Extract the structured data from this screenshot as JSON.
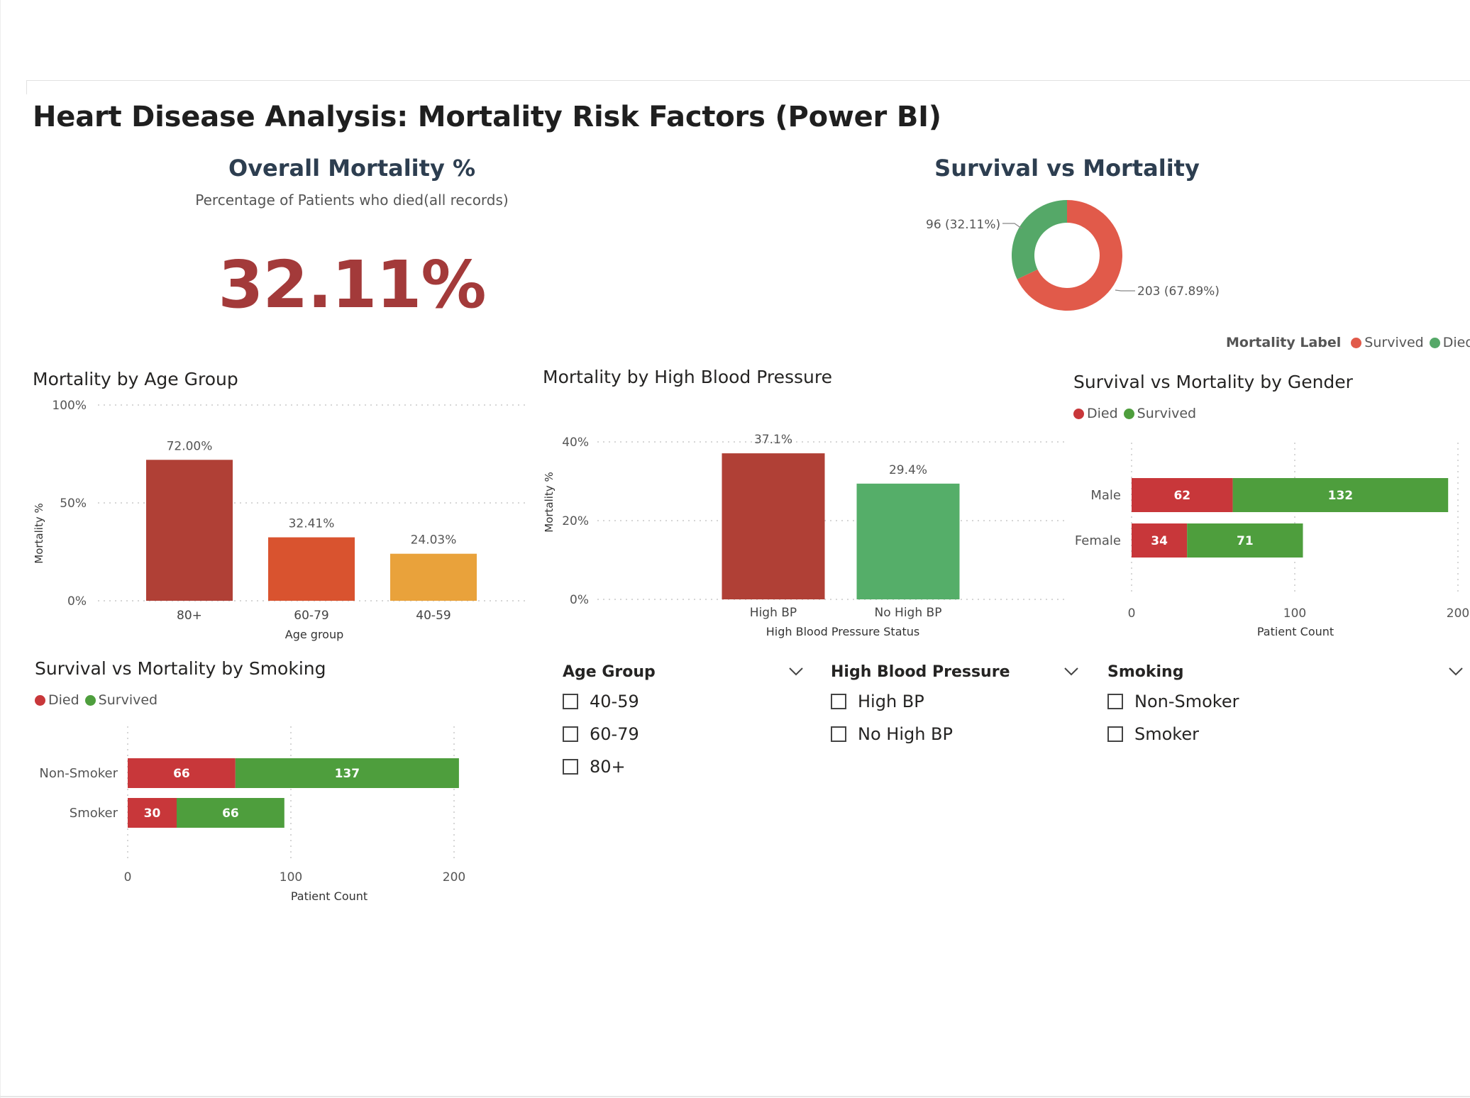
{
  "page": {
    "title": "Heart Disease Analysis: Mortality Risk Factors (Power BI)"
  },
  "kpi": {
    "title": "Overall Mortality %",
    "subtitle": "Percentage of Patients who died(all records)",
    "value": "32.11%"
  },
  "donut": {
    "title": "Survival vs Mortality",
    "label_died": "96 (32.11%)",
    "label_survived": "203 (67.89%)",
    "legend_title": "Mortality Label",
    "legend_items": [
      "Survived",
      "Died"
    ],
    "colors": {
      "survived": "#e15a4a",
      "died": "#55a868"
    }
  },
  "age_chart": {
    "title": "Mortality by Age Group",
    "ylabel": "Mortality %",
    "xlabel": "Age group"
  },
  "bp_chart": {
    "title": "Mortality by High Blood Pressure",
    "ylabel": "Mortality %",
    "xlabel": "High Blood Pressure Status"
  },
  "gender_chart": {
    "title": "Survival vs Mortality by Gender",
    "legend": [
      "Died",
      "Survived"
    ],
    "xlabel": "Patient Count"
  },
  "smoking_chart": {
    "title": "Survival vs Mortality by Smoking",
    "legend": [
      "Died",
      "Survived"
    ],
    "xlabel": "Patient Count"
  },
  "slicers": {
    "age": {
      "title": "Age Group",
      "options": [
        "40-59",
        "60-79",
        "80+"
      ]
    },
    "bp": {
      "title": "High Blood Pressure",
      "options": [
        "High BP",
        "No High BP"
      ]
    },
    "smoking": {
      "title": "Smoking",
      "options": [
        "Non-Smoker",
        "Smoker"
      ]
    }
  },
  "chart_data": [
    {
      "type": "pie",
      "title": "Survival vs Mortality",
      "categories": [
        "Survived",
        "Died"
      ],
      "values": [
        203,
        96
      ],
      "percent": [
        67.89,
        32.11
      ],
      "legend": "top-right"
    },
    {
      "type": "bar",
      "title": "Mortality by Age Group",
      "categories": [
        "80+",
        "60-79",
        "40-59"
      ],
      "values": [
        72.0,
        32.41,
        24.03
      ],
      "data_labels": [
        "72.00%",
        "32.41%",
        "24.03%"
      ],
      "colors": [
        "#b04036",
        "#d9532f",
        "#e9a23b"
      ],
      "xlabel": "Age group",
      "ylabel": "Mortality %",
      "ylim": [
        0,
        100
      ],
      "yticks": [
        "0%",
        "50%",
        "100%"
      ]
    },
    {
      "type": "bar",
      "title": "Mortality by High Blood Pressure",
      "categories": [
        "High BP",
        "No High BP"
      ],
      "values": [
        37.1,
        29.4
      ],
      "data_labels": [
        "37.1%",
        "29.4%"
      ],
      "colors": [
        "#b04036",
        "#55ae69"
      ],
      "xlabel": "High Blood Pressure Status",
      "ylabel": "Mortality %",
      "ylim": [
        0,
        40
      ],
      "yticks": [
        "0%",
        "20%",
        "40%"
      ]
    },
    {
      "type": "bar",
      "orientation": "horizontal-stacked",
      "title": "Survival vs Mortality by Gender",
      "categories": [
        "Male",
        "Female"
      ],
      "series": [
        {
          "name": "Died",
          "values": [
            62,
            34
          ],
          "color": "#c8373a"
        },
        {
          "name": "Survived",
          "values": [
            132,
            71
          ],
          "color": "#4e9e3d"
        }
      ],
      "xlabel": "Patient Count",
      "xlim": [
        0,
        200
      ],
      "xticks": [
        "0",
        "100",
        "200"
      ]
    },
    {
      "type": "bar",
      "orientation": "horizontal-stacked",
      "title": "Survival vs Mortality by Smoking",
      "categories": [
        "Non-Smoker",
        "Smoker"
      ],
      "series": [
        {
          "name": "Died",
          "values": [
            66,
            30
          ],
          "color": "#c8373a"
        },
        {
          "name": "Survived",
          "values": [
            137,
            66
          ],
          "color": "#4e9e3d"
        }
      ],
      "xlabel": "Patient Count",
      "xlim": [
        0,
        200
      ],
      "xticks": [
        "0",
        "100",
        "200"
      ]
    }
  ]
}
